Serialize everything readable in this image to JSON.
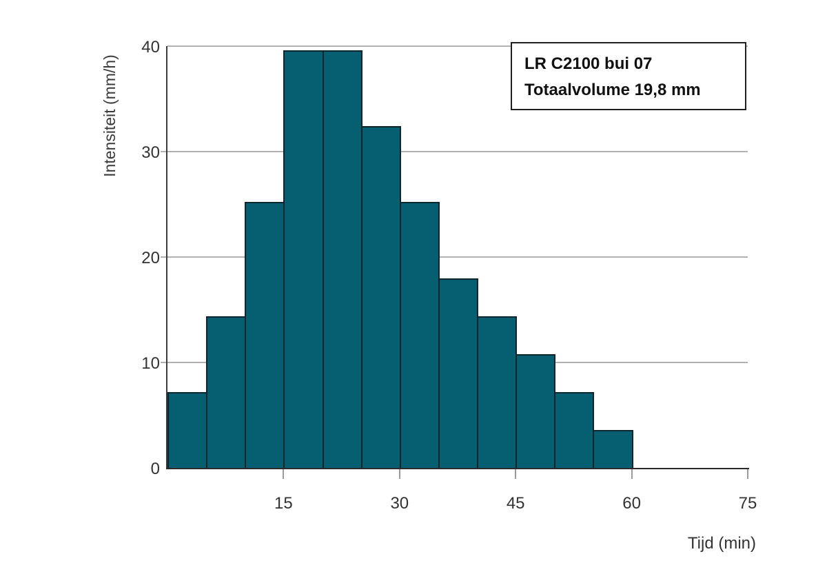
{
  "chart_data": {
    "type": "bar",
    "subtype": "histogram",
    "title": "",
    "xlabel": "Tijd (min)",
    "ylabel": "Intensiteit (mm/h)",
    "xlim": [
      0,
      75
    ],
    "ylim": [
      0,
      40
    ],
    "bin_start_min": 0,
    "bin_width_min": 5,
    "categories": [
      "0-5",
      "5-10",
      "10-15",
      "15-20",
      "20-25",
      "25-30",
      "30-35",
      "35-40",
      "40-45",
      "45-50",
      "50-55",
      "55-60"
    ],
    "values": [
      7.2,
      14.4,
      25.2,
      39.6,
      39.6,
      32.4,
      25.2,
      18,
      14.4,
      10.8,
      7.2,
      3.6
    ],
    "xticks": [
      15,
      30,
      45,
      60,
      75
    ],
    "yticks": [
      0,
      10,
      20,
      30,
      40
    ],
    "gridlines_y": [
      10,
      20,
      30,
      40
    ],
    "grid": "horizontal-only",
    "legend_position": "top-right",
    "colors": {
      "bar_fill": "#065f70",
      "bar_border": "#0d252b",
      "gridline": "#b1b1b1",
      "tick": "#9b9b9b",
      "axis": "#333333",
      "text": "#333333",
      "background": "#ffffff"
    }
  },
  "legend": {
    "line1": "LR C2100 bui 07",
    "line2": "Totaalvolume 19,8 mm"
  }
}
